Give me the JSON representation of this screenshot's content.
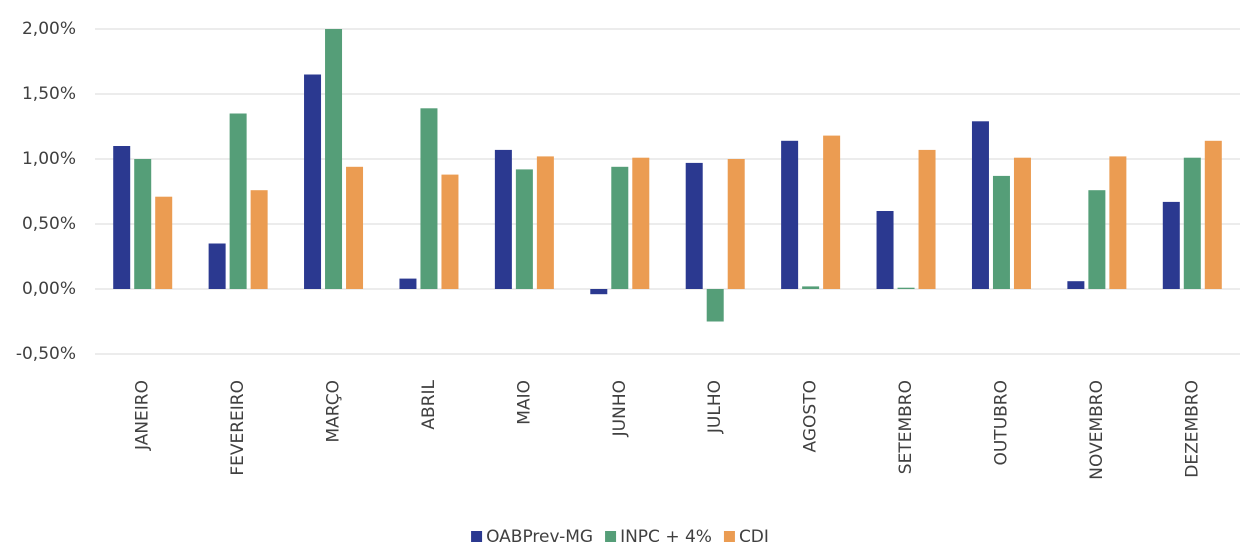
{
  "chart_data": {
    "type": "bar",
    "categories": [
      "JANEIRO",
      "FEVEREIRO",
      "MARÇO",
      "ABRIL",
      "MAIO",
      "JUNHO",
      "JULHO",
      "AGOSTO",
      "SETEMBRO",
      "OUTUBRO",
      "NOVEMBRO",
      "DEZEMBRO"
    ],
    "series": [
      {
        "name": "OABPrev-MG",
        "color": "#2b3990",
        "values": [
          1.1,
          0.35,
          1.65,
          0.08,
          1.07,
          -0.04,
          0.97,
          1.14,
          0.6,
          1.29,
          0.06,
          0.67
        ]
      },
      {
        "name": "INPC + 4%",
        "color": "#559e78",
        "values": [
          1.0,
          1.35,
          2.0,
          1.39,
          0.92,
          0.94,
          -0.25,
          0.02,
          0.01,
          0.87,
          0.76,
          1.01
        ]
      },
      {
        "name": "CDI",
        "color": "#eb9c52",
        "values": [
          0.71,
          0.76,
          0.94,
          0.88,
          1.02,
          1.01,
          1.0,
          1.18,
          1.07,
          1.01,
          1.02,
          1.14
        ]
      }
    ],
    "ylim": [
      -0.5,
      2.0
    ],
    "yticks": [
      {
        "value": -0.5,
        "label": "-0,50%"
      },
      {
        "value": 0,
        "label": "0,00%"
      },
      {
        "value": 0.5,
        "label": "0,50%"
      },
      {
        "value": 1.0,
        "label": "1,00%"
      },
      {
        "value": 1.5,
        "label": "1,50%"
      },
      {
        "value": 2.0,
        "label": "2,00%"
      }
    ],
    "grid": true,
    "legend": "bottom"
  }
}
